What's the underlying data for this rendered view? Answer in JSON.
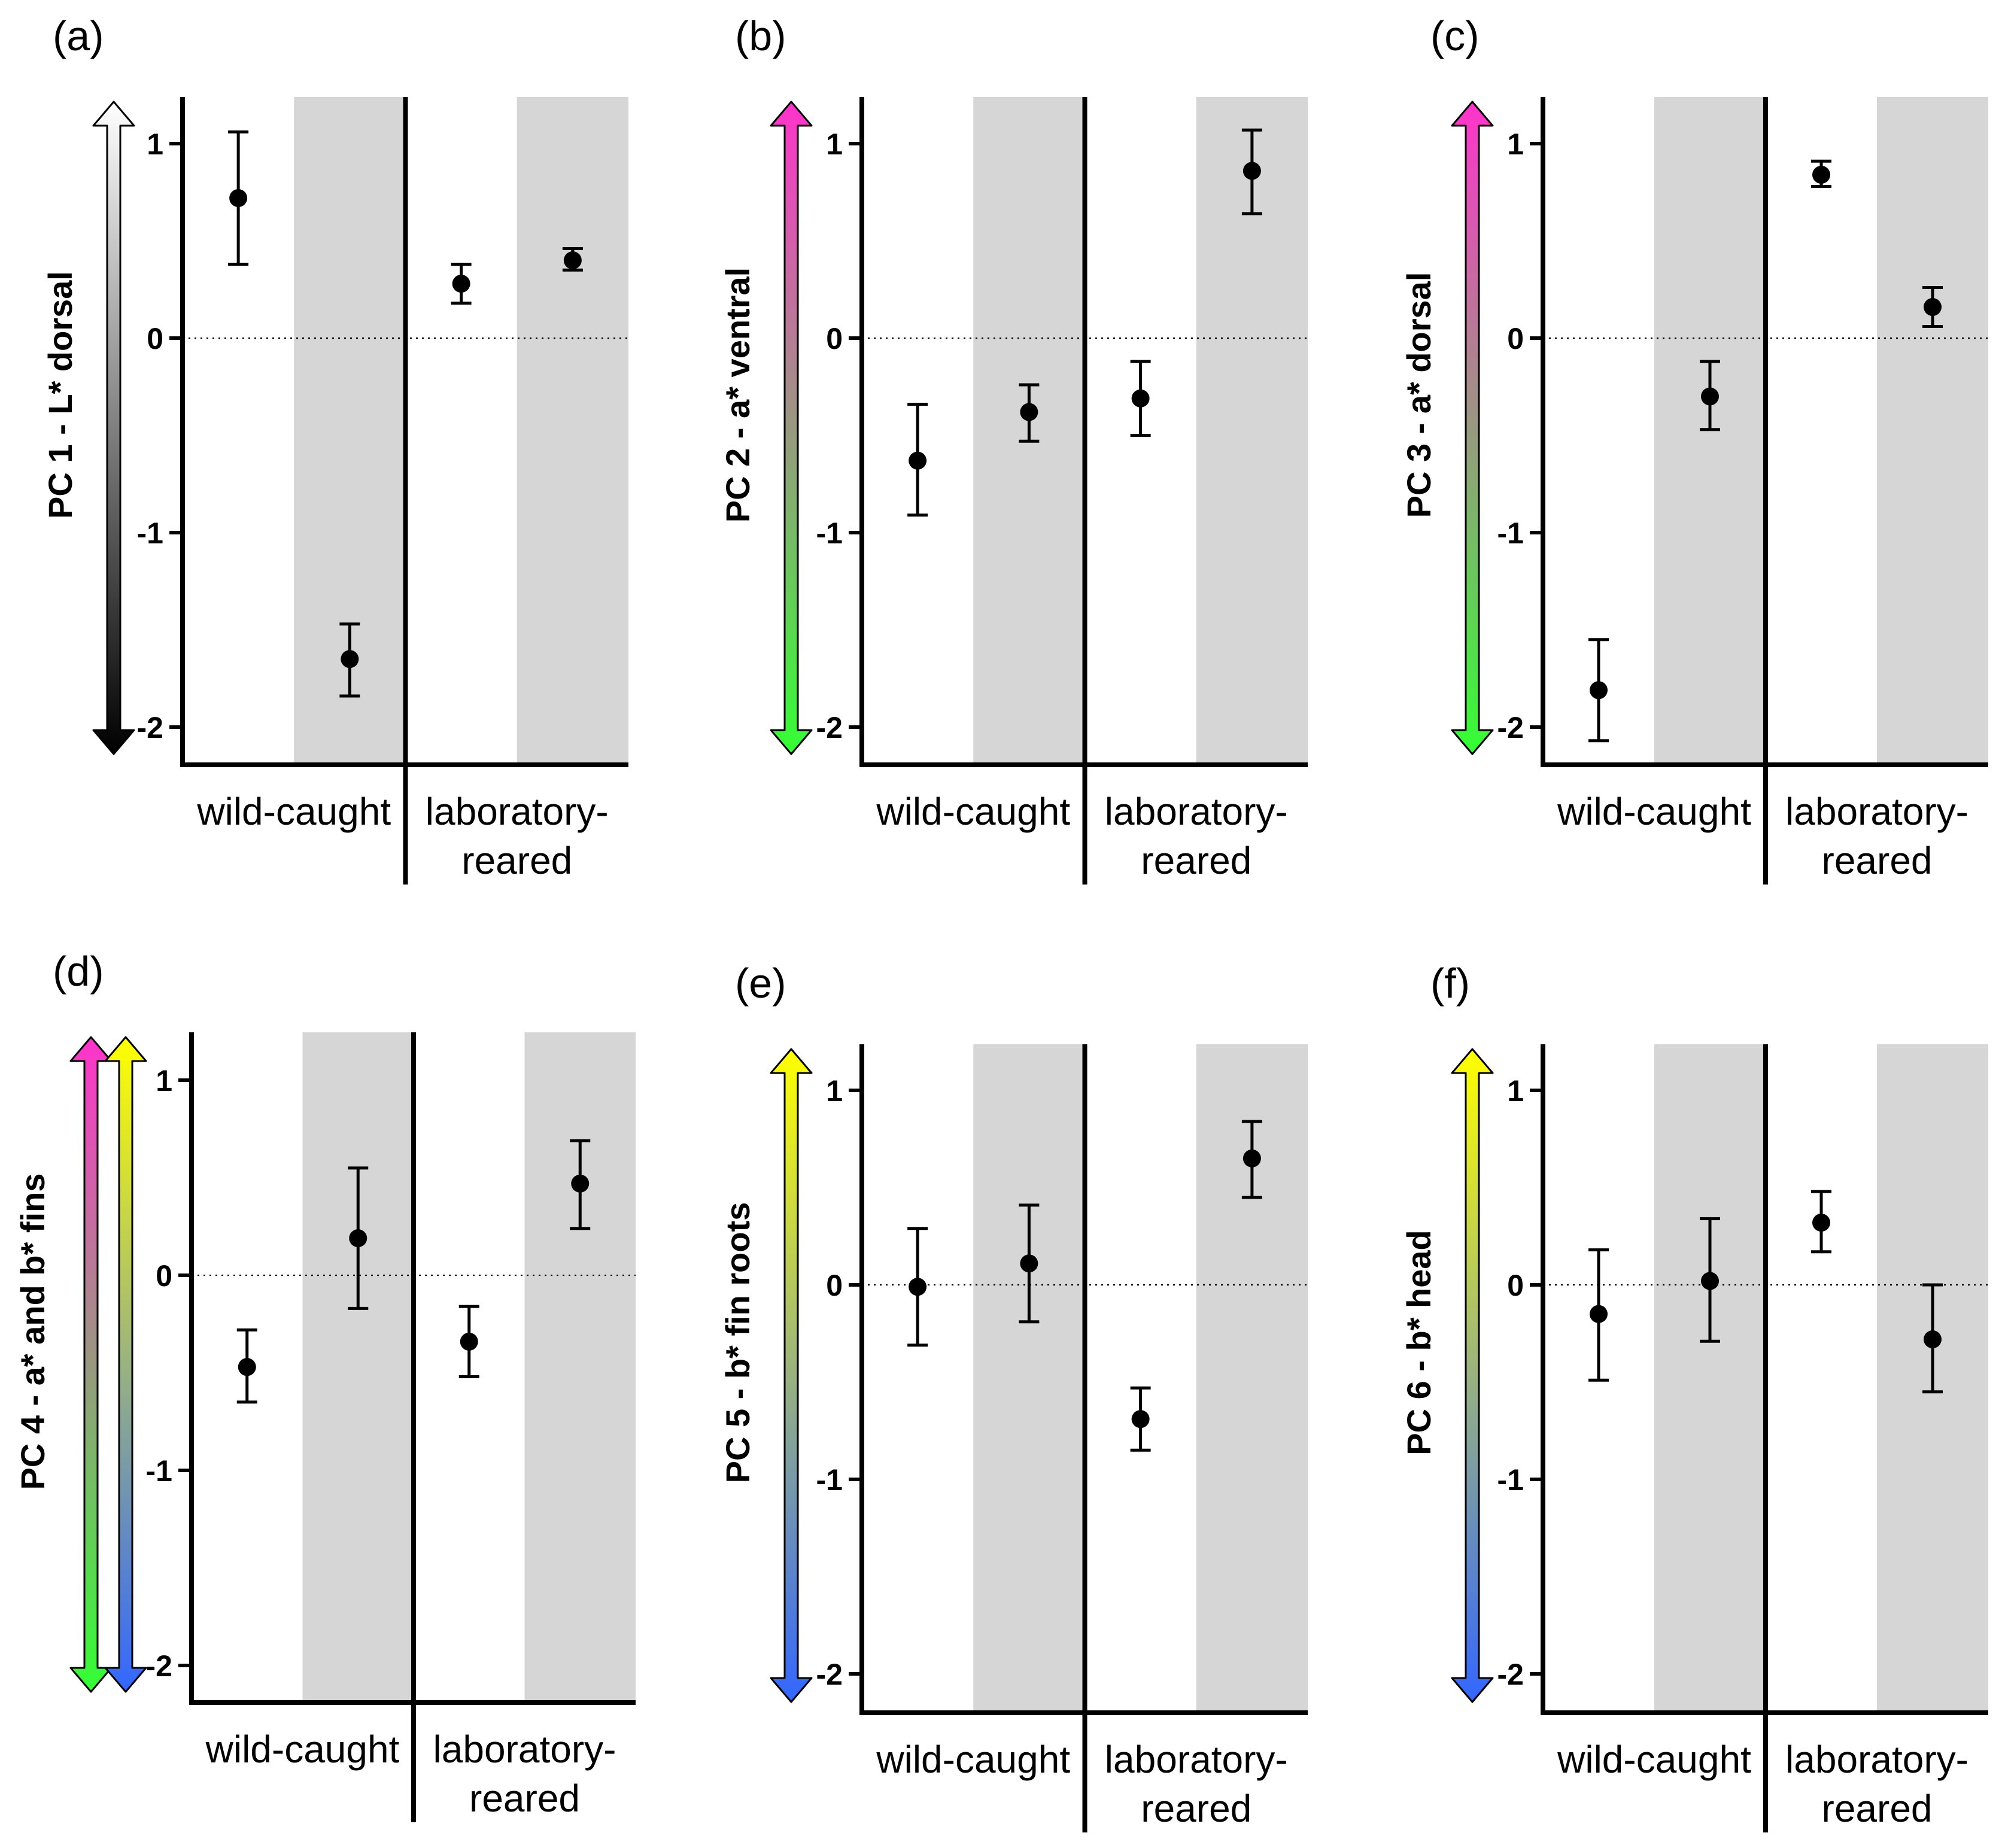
{
  "figure": {
    "group_labels": [
      "wild-caught",
      "laboratory-",
      "reared"
    ],
    "colors": {
      "shade": "#d6d6d6",
      "marker": "#000000",
      "gray_top": "#ffffff",
      "gray_bottom": "#000000",
      "magenta": "#ff33cc",
      "green": "#33ff33",
      "yellow": "#ffff00",
      "blue": "#3366ff"
    }
  },
  "chart_data": [
    {
      "type": "scatter",
      "panel_label": "(a)",
      "ylabel": "PC 1 - L* dorsal",
      "ylim": [
        -2.2,
        1.22
      ],
      "yticks": [
        -2,
        -1,
        0,
        1
      ],
      "ytick_labels": [
        "-2",
        "-1",
        "0",
        "1"
      ],
      "categories": [
        "wild-caught 1",
        "wild-caught 2",
        "laboratory-reared 1",
        "laboratory-reared 2"
      ],
      "shaded": [
        false,
        true,
        false,
        true
      ],
      "values": [
        0.72,
        -1.65,
        0.28,
        0.4
      ],
      "error_low": [
        0.38,
        -1.84,
        0.18,
        0.35
      ],
      "error_high": [
        1.06,
        -1.47,
        0.38,
        0.46
      ],
      "reference_line": 0,
      "color_arrows": [
        [
          "gray_top",
          "gray_bottom"
        ]
      ]
    },
    {
      "type": "scatter",
      "panel_label": "(b)",
      "ylabel": "PC 2 - a* ventral",
      "ylim": [
        -2.2,
        1.22
      ],
      "yticks": [
        -2,
        -1,
        0,
        1
      ],
      "ytick_labels": [
        "-2",
        "-1",
        "0",
        "1"
      ],
      "categories": [
        "wild-caught 1",
        "wild-caught 2",
        "laboratory-reared 1",
        "laboratory-reared 2"
      ],
      "shaded": [
        false,
        true,
        false,
        true
      ],
      "values": [
        -0.63,
        -0.38,
        -0.31,
        0.86
      ],
      "error_low": [
        -0.91,
        -0.53,
        -0.5,
        0.64
      ],
      "error_high": [
        -0.34,
        -0.24,
        -0.12,
        1.07
      ],
      "reference_line": 0,
      "color_arrows": [
        [
          "magenta",
          "green"
        ]
      ]
    },
    {
      "type": "scatter",
      "panel_label": "(c)",
      "ylabel": "PC 3 - a* dorsal",
      "ylim": [
        -2.2,
        1.22
      ],
      "yticks": [
        -2,
        -1,
        0,
        1
      ],
      "ytick_labels": [
        "-2",
        "-1",
        "0",
        "1"
      ],
      "categories": [
        "wild-caught 1",
        "wild-caught 2",
        "laboratory-reared 1",
        "laboratory-reared 2"
      ],
      "shaded": [
        false,
        true,
        false,
        true
      ],
      "values": [
        -1.81,
        -0.3,
        0.84,
        0.16
      ],
      "error_low": [
        -2.07,
        -0.47,
        0.78,
        0.06
      ],
      "error_high": [
        -1.55,
        -0.12,
        0.91,
        0.26
      ],
      "reference_line": 0,
      "color_arrows": [
        [
          "magenta",
          "green"
        ]
      ]
    },
    {
      "type": "scatter",
      "panel_label": "(d)",
      "ylabel": "PC 4 - a* and b* fins",
      "ylim": [
        -2.2,
        1.22
      ],
      "yticks": [
        -2,
        -1,
        0,
        1
      ],
      "ytick_labels": [
        "-2",
        "-1",
        "0",
        "1"
      ],
      "categories": [
        "wild-caught 1",
        "wild-caught 2",
        "laboratory-reared 1",
        "laboratory-reared 2"
      ],
      "shaded": [
        false,
        true,
        false,
        true
      ],
      "values": [
        -0.47,
        0.19,
        -0.34,
        0.47
      ],
      "error_low": [
        -0.65,
        -0.17,
        -0.52,
        0.24
      ],
      "error_high": [
        -0.28,
        0.55,
        -0.16,
        0.69
      ],
      "reference_line": 0,
      "color_arrows": [
        [
          "magenta",
          "green"
        ],
        [
          "yellow",
          "blue"
        ]
      ]
    },
    {
      "type": "scatter",
      "panel_label": "(e)",
      "ylabel": "PC 5 - b* fin roots",
      "ylim": [
        -2.2,
        1.22
      ],
      "yticks": [
        -2,
        -1,
        0,
        1
      ],
      "ytick_labels": [
        "-2",
        "-1",
        "0",
        "1"
      ],
      "categories": [
        "wild-caught 1",
        "wild-caught 2",
        "laboratory-reared 1",
        "laboratory-reared 2"
      ],
      "shaded": [
        false,
        true,
        false,
        true
      ],
      "values": [
        -0.01,
        0.11,
        -0.69,
        0.65
      ],
      "error_low": [
        -0.31,
        -0.19,
        -0.85,
        0.45
      ],
      "error_high": [
        0.29,
        0.41,
        -0.53,
        0.84
      ],
      "reference_line": 0,
      "color_arrows": [
        [
          "yellow",
          "blue"
        ]
      ]
    },
    {
      "type": "scatter",
      "panel_label": "(f)",
      "ylabel": "PC 6 - b* head",
      "ylim": [
        -2.2,
        1.22
      ],
      "yticks": [
        -2,
        -1,
        0,
        1
      ],
      "ytick_labels": [
        "-2",
        "-1",
        "0",
        "1"
      ],
      "categories": [
        "wild-caught 1",
        "wild-caught 2",
        "laboratory-reared 1",
        "laboratory-reared 2"
      ],
      "shaded": [
        false,
        true,
        false,
        true
      ],
      "values": [
        -0.15,
        0.02,
        0.32,
        -0.28
      ],
      "error_low": [
        -0.49,
        -0.29,
        0.17,
        -0.55
      ],
      "error_high": [
        0.18,
        0.34,
        0.48,
        0.0
      ],
      "reference_line": 0,
      "color_arrows": [
        [
          "yellow",
          "blue"
        ]
      ]
    }
  ]
}
